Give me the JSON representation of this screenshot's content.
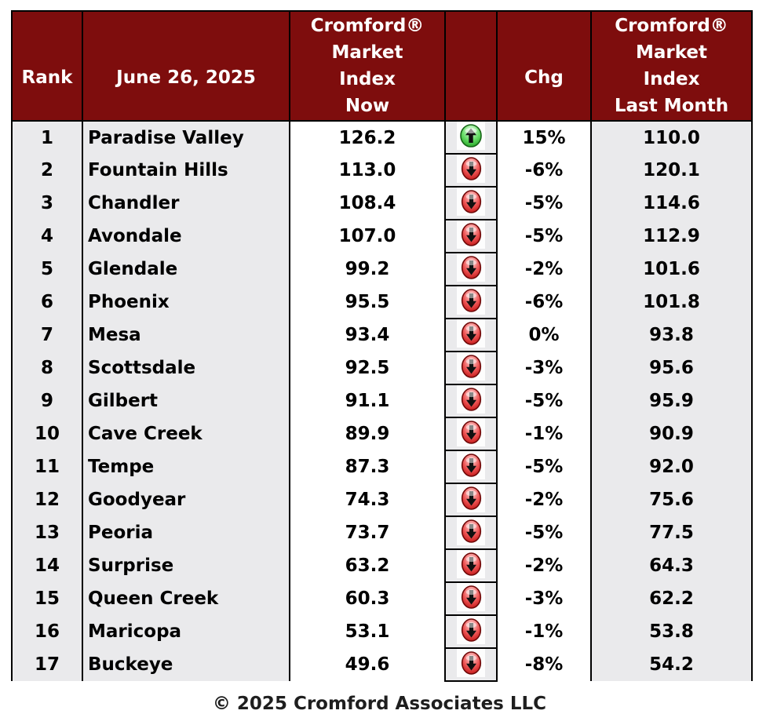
{
  "colors": {
    "header_bg": "#7E0D0D",
    "header_text": "#FFFFFF",
    "row_bg": "#EAEAEC",
    "value_col_bg": "#FFFFFF",
    "border": "#000000",
    "up_arrow_green": "#2EB82E",
    "down_arrow_red": "#CC1111",
    "body_text": "#000000"
  },
  "table": {
    "headers": {
      "rank": "Rank",
      "date": "June 26, 2025",
      "index_now": "Cromford®\nMarket\nIndex\nNow",
      "arrow": "",
      "chg": "Chg",
      "index_last": "Cromford®\nMarket\nIndex\nLast Month"
    },
    "rows": [
      {
        "rank": "1",
        "city": "Paradise Valley",
        "now": "126.2",
        "direction": "up",
        "chg": "15%",
        "last": "110.0"
      },
      {
        "rank": "2",
        "city": "Fountain Hills",
        "now": "113.0",
        "direction": "down",
        "chg": "-6%",
        "last": "120.1"
      },
      {
        "rank": "3",
        "city": "Chandler",
        "now": "108.4",
        "direction": "down",
        "chg": "-5%",
        "last": "114.6"
      },
      {
        "rank": "4",
        "city": "Avondale",
        "now": "107.0",
        "direction": "down",
        "chg": "-5%",
        "last": "112.9"
      },
      {
        "rank": "5",
        "city": "Glendale",
        "now": "99.2",
        "direction": "down",
        "chg": "-2%",
        "last": "101.6"
      },
      {
        "rank": "6",
        "city": "Phoenix",
        "now": "95.5",
        "direction": "down",
        "chg": "-6%",
        "last": "101.8"
      },
      {
        "rank": "7",
        "city": "Mesa",
        "now": "93.4",
        "direction": "down",
        "chg": "0%",
        "last": "93.8"
      },
      {
        "rank": "8",
        "city": "Scottsdale",
        "now": "92.5",
        "direction": "down",
        "chg": "-3%",
        "last": "95.6"
      },
      {
        "rank": "9",
        "city": "Gilbert",
        "now": "91.1",
        "direction": "down",
        "chg": "-5%",
        "last": "95.9"
      },
      {
        "rank": "10",
        "city": "Cave Creek",
        "now": "89.9",
        "direction": "down",
        "chg": "-1%",
        "last": "90.9"
      },
      {
        "rank": "11",
        "city": "Tempe",
        "now": "87.3",
        "direction": "down",
        "chg": "-5%",
        "last": "92.0"
      },
      {
        "rank": "12",
        "city": "Goodyear",
        "now": "74.3",
        "direction": "down",
        "chg": "-2%",
        "last": "75.6"
      },
      {
        "rank": "13",
        "city": "Peoria",
        "now": "73.7",
        "direction": "down",
        "chg": "-5%",
        "last": "77.5"
      },
      {
        "rank": "14",
        "city": "Surprise",
        "now": "63.2",
        "direction": "down",
        "chg": "-2%",
        "last": "64.3"
      },
      {
        "rank": "15",
        "city": "Queen Creek",
        "now": "60.3",
        "direction": "down",
        "chg": "-3%",
        "last": "62.2"
      },
      {
        "rank": "16",
        "city": "Maricopa",
        "now": "53.1",
        "direction": "down",
        "chg": "-1%",
        "last": "53.8"
      },
      {
        "rank": "17",
        "city": "Buckeye",
        "now": "49.6",
        "direction": "down",
        "chg": "-8%",
        "last": "54.2"
      }
    ]
  },
  "footer": {
    "text": "© 2025 Cromford Associates LLC"
  },
  "chart_data": {
    "type": "table",
    "title": "Cromford® Market Index by City — June 26, 2025",
    "columns": [
      "Rank",
      "June 26, 2025 (City)",
      "Cromford Market Index Now",
      "Change Direction",
      "Chg",
      "Cromford Market Index Last Month"
    ],
    "rows": [
      [
        1,
        "Paradise Valley",
        126.2,
        "up",
        "15%",
        110.0
      ],
      [
        2,
        "Fountain Hills",
        113.0,
        "down",
        "-6%",
        120.1
      ],
      [
        3,
        "Chandler",
        108.4,
        "down",
        "-5%",
        114.6
      ],
      [
        4,
        "Avondale",
        107.0,
        "down",
        "-5%",
        112.9
      ],
      [
        5,
        "Glendale",
        99.2,
        "down",
        "-2%",
        101.6
      ],
      [
        6,
        "Phoenix",
        95.5,
        "down",
        "-6%",
        101.8
      ],
      [
        7,
        "Mesa",
        93.4,
        "down",
        "0%",
        93.8
      ],
      [
        8,
        "Scottsdale",
        92.5,
        "down",
        "-3%",
        95.6
      ],
      [
        9,
        "Gilbert",
        91.1,
        "down",
        "-5%",
        95.9
      ],
      [
        10,
        "Cave Creek",
        89.9,
        "down",
        "-1%",
        90.9
      ],
      [
        11,
        "Tempe",
        87.3,
        "down",
        "-5%",
        92.0
      ],
      [
        12,
        "Goodyear",
        74.3,
        "down",
        "-2%",
        75.6
      ],
      [
        13,
        "Peoria",
        73.7,
        "down",
        "-5%",
        77.5
      ],
      [
        14,
        "Surprise",
        63.2,
        "down",
        "-2%",
        64.3
      ],
      [
        15,
        "Queen Creek",
        60.3,
        "down",
        "-3%",
        62.2
      ],
      [
        16,
        "Maricopa",
        53.1,
        "down",
        "-1%",
        53.8
      ],
      [
        17,
        "Buckeye",
        49.6,
        "down",
        "-8%",
        54.2
      ]
    ]
  }
}
